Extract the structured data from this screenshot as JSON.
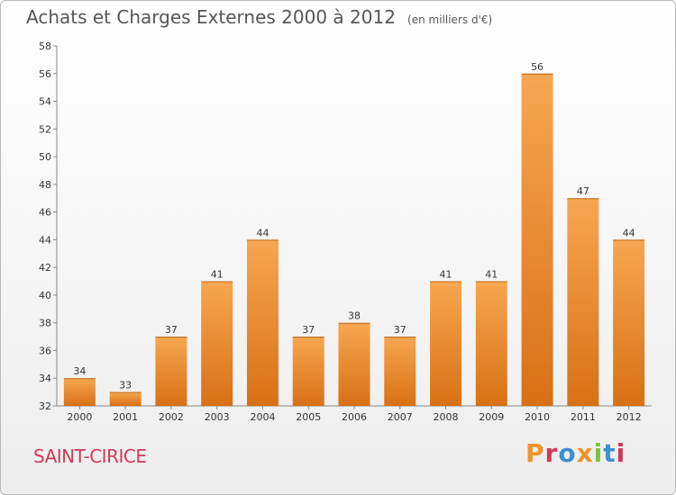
{
  "header": {
    "title": "Achats et Charges Externes 2000 à 2012",
    "subtitle": "(en milliers d'€)"
  },
  "footer": {
    "commune": "SAINT-CIRICE",
    "logo_text": "Proxiti"
  },
  "colors": {
    "bar_top": "#f6a750",
    "bar_bottom": "#d97015",
    "title": "#555555",
    "commune": "#cf3a58",
    "logo": [
      "#f0932b",
      "#cf3a58",
      "#3c8fd4",
      "#f0932b",
      "#7fc241",
      "#3c8fd4",
      "#cf3a58"
    ]
  },
  "chart_data": {
    "type": "bar",
    "title": "Achats et Charges Externes 2000 à 2012",
    "subtitle": "(en milliers d'€)",
    "categories": [
      "2000",
      "2001",
      "2002",
      "2003",
      "2004",
      "2005",
      "2006",
      "2007",
      "2008",
      "2009",
      "2010",
      "2011",
      "2012"
    ],
    "values": [
      34,
      33,
      37,
      41,
      44,
      37,
      38,
      37,
      41,
      41,
      56,
      47,
      44
    ],
    "ylim": [
      32,
      58
    ],
    "yticks": [
      32,
      34,
      36,
      38,
      40,
      42,
      44,
      46,
      48,
      50,
      52,
      54,
      56,
      58
    ],
    "grid": false,
    "legend": "none",
    "data_labels": true
  }
}
